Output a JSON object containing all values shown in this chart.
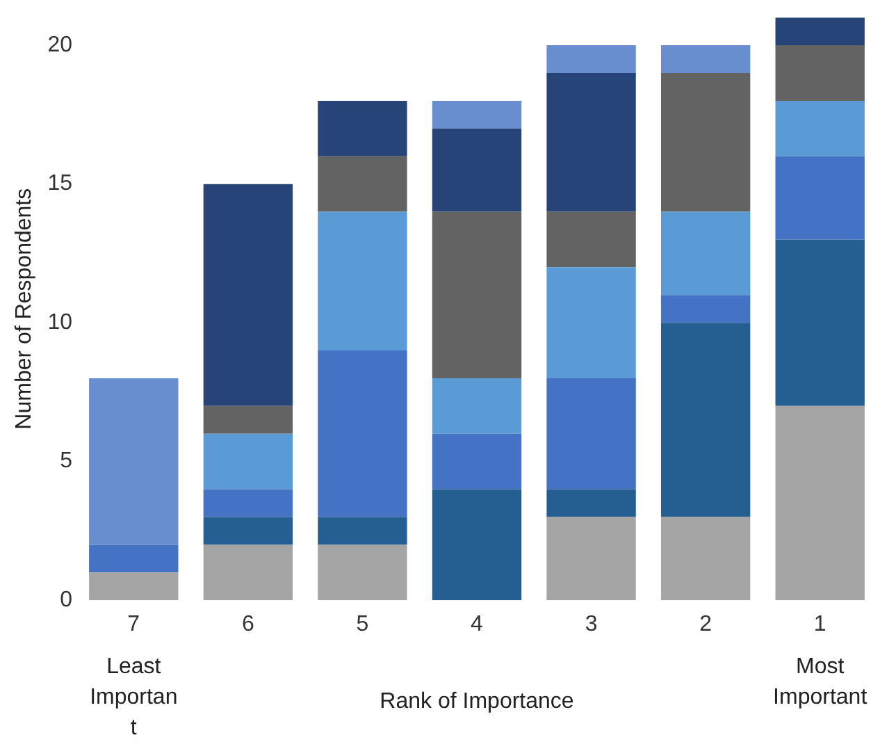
{
  "chart_data": {
    "type": "bar",
    "stacked": true,
    "xlabel": "Rank of Importance",
    "ylabel": "Number of Respondents",
    "categories": [
      "7",
      "6",
      "5",
      "4",
      "3",
      "2",
      "1"
    ],
    "series": [
      {
        "color": "#a5a5a5",
        "values": [
          1,
          2,
          2,
          0,
          3,
          3,
          7
        ]
      },
      {
        "color": "#255e91",
        "values": [
          0,
          1,
          1,
          4,
          1,
          7,
          6
        ]
      },
      {
        "color": "#4472c4",
        "values": [
          1,
          1,
          6,
          2,
          4,
          1,
          3
        ]
      },
      {
        "color": "#5b9bd5",
        "values": [
          0,
          2,
          5,
          2,
          4,
          3,
          2
        ]
      },
      {
        "color": "#636363",
        "values": [
          0,
          1,
          2,
          6,
          2,
          5,
          2
        ]
      },
      {
        "color": "#264478",
        "values": [
          0,
          8,
          2,
          3,
          5,
          0,
          1
        ]
      },
      {
        "color": "#698ed0",
        "values": [
          6,
          0,
          0,
          1,
          1,
          1,
          0
        ]
      }
    ],
    "ylim": [
      0,
      21
    ],
    "yticks": [
      0,
      5,
      10,
      15,
      20
    ],
    "grid": false,
    "legend": false,
    "annotations": [
      "Least Importan t",
      "Most Important"
    ]
  }
}
